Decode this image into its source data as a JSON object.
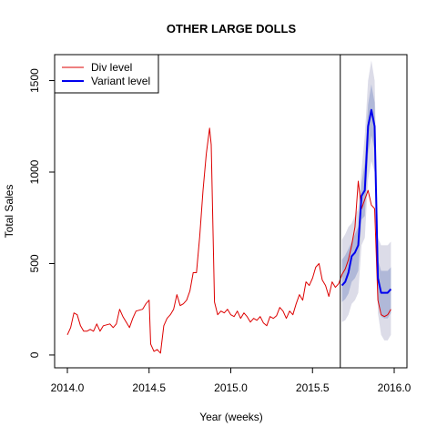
{
  "chart_data": {
    "type": "line",
    "title": "OTHER LARGE DOLLS",
    "xlabel": "Year (weeks)",
    "ylabel": "Total Sales",
    "xlim": [
      2014.0,
      2016.0
    ],
    "ylim": [
      0,
      1600
    ],
    "x_ticks": [
      "2014.0",
      "2014.5",
      "2015.0",
      "2015.5",
      "2016.0"
    ],
    "x_tick_values": [
      2014.0,
      2014.5,
      2015.0,
      2015.5,
      2016.0
    ],
    "y_ticks": [
      "0",
      "500",
      "1000",
      "1500"
    ],
    "y_tick_values": [
      0,
      500,
      1000,
      1500
    ],
    "grid": false,
    "legend_position": "top-left",
    "forecast_start": 2015.67,
    "colors": {
      "div": "#dd0000",
      "variant": "#0000ee",
      "band_outer": "#dcdce8",
      "band_inner": "#b0b8d8"
    },
    "series": [
      {
        "name": "Div level",
        "x": [
          2014.0,
          2014.02,
          2014.04,
          2014.06,
          2014.08,
          2014.1,
          2014.12,
          2014.14,
          2014.16,
          2014.18,
          2014.2,
          2014.22,
          2014.24,
          2014.26,
          2014.28,
          2014.3,
          2014.32,
          2014.34,
          2014.36,
          2014.38,
          2014.4,
          2014.42,
          2014.44,
          2014.46,
          2014.48,
          2014.5,
          2014.51,
          2014.53,
          2014.55,
          2014.57,
          2014.59,
          2014.61,
          2014.63,
          2014.65,
          2014.67,
          2014.69,
          2014.71,
          2014.73,
          2014.75,
          2014.77,
          2014.79,
          2014.81,
          2014.83,
          2014.85,
          2014.87,
          2014.88,
          2014.9,
          2014.92,
          2014.94,
          2014.96,
          2014.98,
          2015.0,
          2015.02,
          2015.04,
          2015.06,
          2015.08,
          2015.1,
          2015.12,
          2015.14,
          2015.16,
          2015.18,
          2015.2,
          2015.22,
          2015.24,
          2015.26,
          2015.28,
          2015.3,
          2015.32,
          2015.34,
          2015.36,
          2015.38,
          2015.4,
          2015.42,
          2015.44,
          2015.46,
          2015.48,
          2015.5,
          2015.52,
          2015.54,
          2015.56,
          2015.58,
          2015.6,
          2015.62,
          2015.64,
          2015.66,
          2015.68,
          2015.7,
          2015.72,
          2015.74,
          2015.76,
          2015.78,
          2015.8,
          2015.82,
          2015.84,
          2015.86,
          2015.88,
          2015.9,
          2015.92,
          2015.94,
          2015.96,
          2015.98
        ],
        "y": [
          110,
          150,
          230,
          220,
          160,
          130,
          130,
          140,
          130,
          170,
          130,
          160,
          165,
          170,
          150,
          170,
          250,
          210,
          180,
          150,
          200,
          240,
          245,
          250,
          280,
          300,
          60,
          20,
          30,
          10,
          160,
          200,
          220,
          250,
          330,
          270,
          280,
          300,
          350,
          450,
          450,
          650,
          900,
          1100,
          1240,
          1150,
          290,
          220,
          240,
          230,
          250,
          220,
          210,
          240,
          200,
          230,
          210,
          180,
          200,
          190,
          210,
          175,
          160,
          210,
          200,
          215,
          260,
          240,
          200,
          240,
          220,
          280,
          330,
          300,
          400,
          380,
          420,
          480,
          500,
          410,
          380,
          320,
          400,
          370,
          390,
          440,
          470,
          520,
          600,
          700,
          950,
          800,
          850,
          900,
          820,
          800,
          300,
          220,
          210,
          220,
          250
        ]
      },
      {
        "name": "Variant level",
        "x": [
          2015.68,
          2015.7,
          2015.72,
          2015.74,
          2015.76,
          2015.78,
          2015.8,
          2015.82,
          2015.84,
          2015.86,
          2015.88,
          2015.9,
          2015.92,
          2015.94,
          2015.96,
          2015.98
        ],
        "y": [
          380,
          400,
          450,
          540,
          560,
          600,
          870,
          900,
          1250,
          1340,
          1250,
          420,
          340,
          340,
          340,
          360
        ]
      }
    ],
    "bands": {
      "x": [
        2015.68,
        2015.7,
        2015.72,
        2015.74,
        2015.76,
        2015.78,
        2015.8,
        2015.82,
        2015.84,
        2015.86,
        2015.88,
        2015.9,
        2015.92,
        2015.94,
        2015.96,
        2015.98
      ],
      "outer_upper": [
        630,
        660,
        700,
        720,
        760,
        800,
        1010,
        1200,
        1500,
        1610,
        1500,
        640,
        600,
        600,
        600,
        620
      ],
      "outer_lower": [
        180,
        190,
        220,
        280,
        300,
        340,
        600,
        640,
        960,
        1060,
        1000,
        230,
        110,
        80,
        80,
        110
      ],
      "inner_upper": [
        520,
        545,
        580,
        620,
        660,
        700,
        940,
        1050,
        1370,
        1480,
        1380,
        520,
        460,
        460,
        460,
        480
      ],
      "inner_lower": [
        290,
        305,
        335,
        400,
        420,
        460,
        740,
        760,
        1100,
        1200,
        1120,
        310,
        210,
        200,
        200,
        230
      ]
    }
  }
}
